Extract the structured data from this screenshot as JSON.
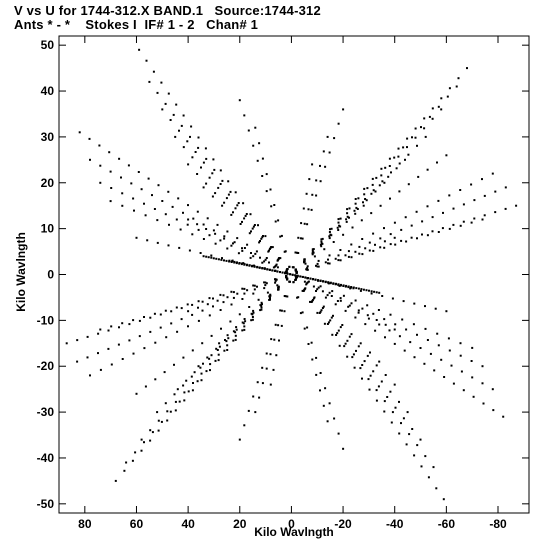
{
  "chart_data": {
    "type": "scatter",
    "title_line_1": "V vs U for 1744-312.X BAND.1   Source:1744-312",
    "title_line_2": "Ants * - *    Stokes I  IF# 1 - 2   Chan# 1",
    "xlabel": "Kilo Wavlngth",
    "ylabel": "Kilo Wavlngth",
    "xlim": [
      90,
      -92
    ],
    "ylim": [
      -52,
      52
    ],
    "x_ticks": [
      80,
      60,
      40,
      20,
      0,
      -20,
      -40,
      -60,
      -80
    ],
    "y_ticks": [
      50,
      40,
      30,
      20,
      10,
      0,
      -10,
      -20,
      -30,
      -40,
      -50
    ],
    "grid": false,
    "tracks": [
      {
        "from": [
          -68,
          45
        ],
        "to": [
          68,
          -45
        ],
        "n": 42
      },
      {
        "from": [
          -64,
          41
        ],
        "to": [
          64,
          -41
        ],
        "n": 38
      },
      {
        "from": [
          -58,
          36
        ],
        "to": [
          58,
          -36
        ],
        "n": 36
      },
      {
        "from": [
          -52,
          30
        ],
        "to": [
          52,
          -30
        ],
        "n": 32
      },
      {
        "from": [
          -44,
          25
        ],
        "to": [
          44,
          -25
        ],
        "n": 28
      },
      {
        "from": [
          -36,
          20
        ],
        "to": [
          36,
          -20
        ],
        "n": 22
      },
      {
        "from": [
          -28,
          15
        ],
        "to": [
          28,
          -15
        ],
        "n": 18
      },
      {
        "from": [
          59,
          49
        ],
        "to": [
          -59,
          -49
        ],
        "n": 42
      },
      {
        "from": [
          55,
          42
        ],
        "to": [
          -55,
          -42
        ],
        "n": 36
      },
      {
        "from": [
          50,
          36
        ],
        "to": [
          -50,
          -36
        ],
        "n": 32
      },
      {
        "from": [
          45,
          30
        ],
        "to": [
          -45,
          -30
        ],
        "n": 28
      },
      {
        "from": [
          40,
          24
        ],
        "to": [
          -40,
          -24
        ],
        "n": 24
      },
      {
        "from": [
          34,
          19
        ],
        "to": [
          -34,
          -19
        ],
        "n": 20
      },
      {
        "from": [
          82,
          31
        ],
        "to": [
          -82,
          -31
        ],
        "n": 44
      },
      {
        "from": [
          78,
          25
        ],
        "to": [
          -78,
          -25
        ],
        "n": 40
      },
      {
        "from": [
          74,
          20
        ],
        "to": [
          -74,
          -20
        ],
        "n": 36
      },
      {
        "from": [
          70,
          16
        ],
        "to": [
          -70,
          -16
        ],
        "n": 32
      },
      {
        "from": [
          -87,
          15
        ],
        "to": [
          87,
          -15
        ],
        "n": 44
      },
      {
        "from": [
          -83,
          19
        ],
        "to": [
          83,
          -19
        ],
        "n": 42
      },
      {
        "from": [
          -78,
          22
        ],
        "to": [
          78,
          -22
        ],
        "n": 38
      },
      {
        "from": [
          -74,
          12
        ],
        "to": [
          74,
          -12
        ],
        "n": 36
      },
      {
        "from": [
          -20,
          36
        ],
        "to": [
          20,
          -36
        ],
        "n": 24
      },
      {
        "from": [
          -14,
          30
        ],
        "to": [
          14,
          -30
        ],
        "n": 20
      },
      {
        "from": [
          -8,
          24
        ],
        "to": [
          8,
          -24
        ],
        "n": 16
      },
      {
        "from": [
          20,
          38
        ],
        "to": [
          -20,
          -38
        ],
        "n": 24
      },
      {
        "from": [
          14,
          32
        ],
        "to": [
          -14,
          -32
        ],
        "n": 20
      },
      {
        "from": [
          40,
          12
        ],
        "to": [
          -40,
          -12
        ],
        "n": 24
      },
      {
        "from": [
          -40,
          8
        ],
        "to": [
          40,
          -8
        ],
        "n": 22
      },
      {
        "from": [
          -60,
          26
        ],
        "to": [
          60,
          -26
        ],
        "n": 34
      },
      {
        "from": [
          60,
          8
        ],
        "to": [
          -60,
          -8
        ],
        "n": 30
      },
      {
        "from": [
          34,
          4
        ],
        "to": [
          -34,
          -4
        ],
        "n": 70
      },
      {
        "from": [
          24,
          3
        ],
        "to": [
          -24,
          -3
        ],
        "n": 50
      }
    ]
  }
}
